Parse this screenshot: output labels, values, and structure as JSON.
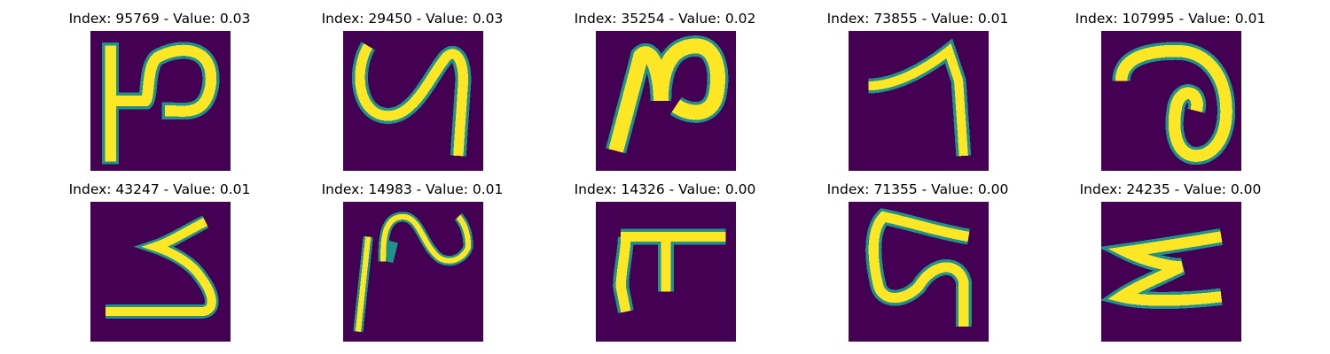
{
  "colormap": {
    "background": "#440154",
    "edge": "#21918c",
    "mid": "#5ec962",
    "stroke": "#fde725"
  },
  "panels": [
    {
      "title": "Index: 95769 - Value: 0.03",
      "index": 95769,
      "value": 0.03
    },
    {
      "title": "Index: 29450 - Value: 0.03",
      "index": 29450,
      "value": 0.03
    },
    {
      "title": "Index: 35254 - Value: 0.02",
      "index": 35254,
      "value": 0.02
    },
    {
      "title": "Index: 73855 - Value: 0.01",
      "index": 73855,
      "value": 0.01
    },
    {
      "title": "Index: 107995 - Value: 0.01",
      "index": 107995,
      "value": 0.01
    },
    {
      "title": "Index: 43247 - Value: 0.01",
      "index": 43247,
      "value": 0.01
    },
    {
      "title": "Index: 14983 - Value: 0.01",
      "index": 14983,
      "value": 0.01
    },
    {
      "title": "Index: 14326 - Value: 0.00",
      "index": 14326,
      "value": 0.0
    },
    {
      "title": "Index: 71355 - Value: 0.00",
      "index": 71355,
      "value": 0.0
    },
    {
      "title": "Index: 24235 - Value: 0.00",
      "index": 24235,
      "value": 0.0
    }
  ]
}
